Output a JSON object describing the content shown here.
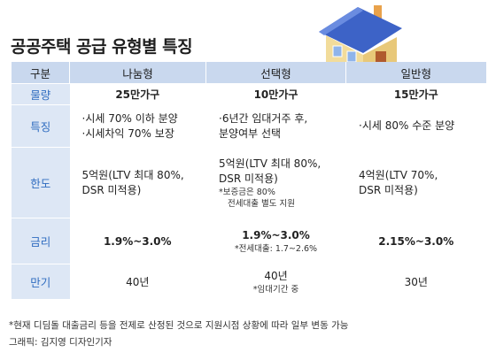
{
  "title": "공공주택 공급 유형별 특징",
  "header": {
    "col0": "구분",
    "col1": "나눔형",
    "col2": "선택형",
    "col3": "일반형"
  },
  "rows": {
    "volume": {
      "label": "물량",
      "a": "25만가구",
      "b": "10만가구",
      "c": "15만가구"
    },
    "feature": {
      "label": "특징",
      "a1": "·시세 70% 이하 분양",
      "a2": "·시세차익 70% 보장",
      "b1": "·6년간 임대거주 후,",
      "b2": "분양여부 선택",
      "c1": "·시세 80% 수준 분양"
    },
    "limit": {
      "label": "한도",
      "a1": "5억원(LTV 최대 80%,",
      "a2": "DSR 미적용)",
      "b1": "5억원(LTV 최대 80%,",
      "b2": "DSR 미적용)",
      "b3": "*보증금은 80%",
      "b4": "전세대출 별도 지원",
      "c1": "4억원(LTV 70%,",
      "c2": "DSR 미적용)"
    },
    "rate": {
      "label": "금리",
      "a": "1.9%~3.0%",
      "b": "1.9%~3.0%",
      "b_note": "*전세대출: 1.7~2.6%",
      "c": "2.15%~3.0%"
    },
    "term": {
      "label": "만기",
      "a": "40년",
      "b": "40년",
      "b_note": "*임대기간 중",
      "c": "30년"
    }
  },
  "footnote": "*현재 디딤돌 대출금리 등을 전제로 산정된 것으로 지원시점 상황에 따라 일부 변동 가능",
  "credit": "그래픽: 김지영 디자인기자",
  "colors": {
    "header_bg": "#c9d8ee",
    "rowhead_bg": "#dde7f5",
    "rowhead_text": "#2f6cc0",
    "house_roof": "#3d63c7",
    "house_wall": "#f2dc9b"
  }
}
